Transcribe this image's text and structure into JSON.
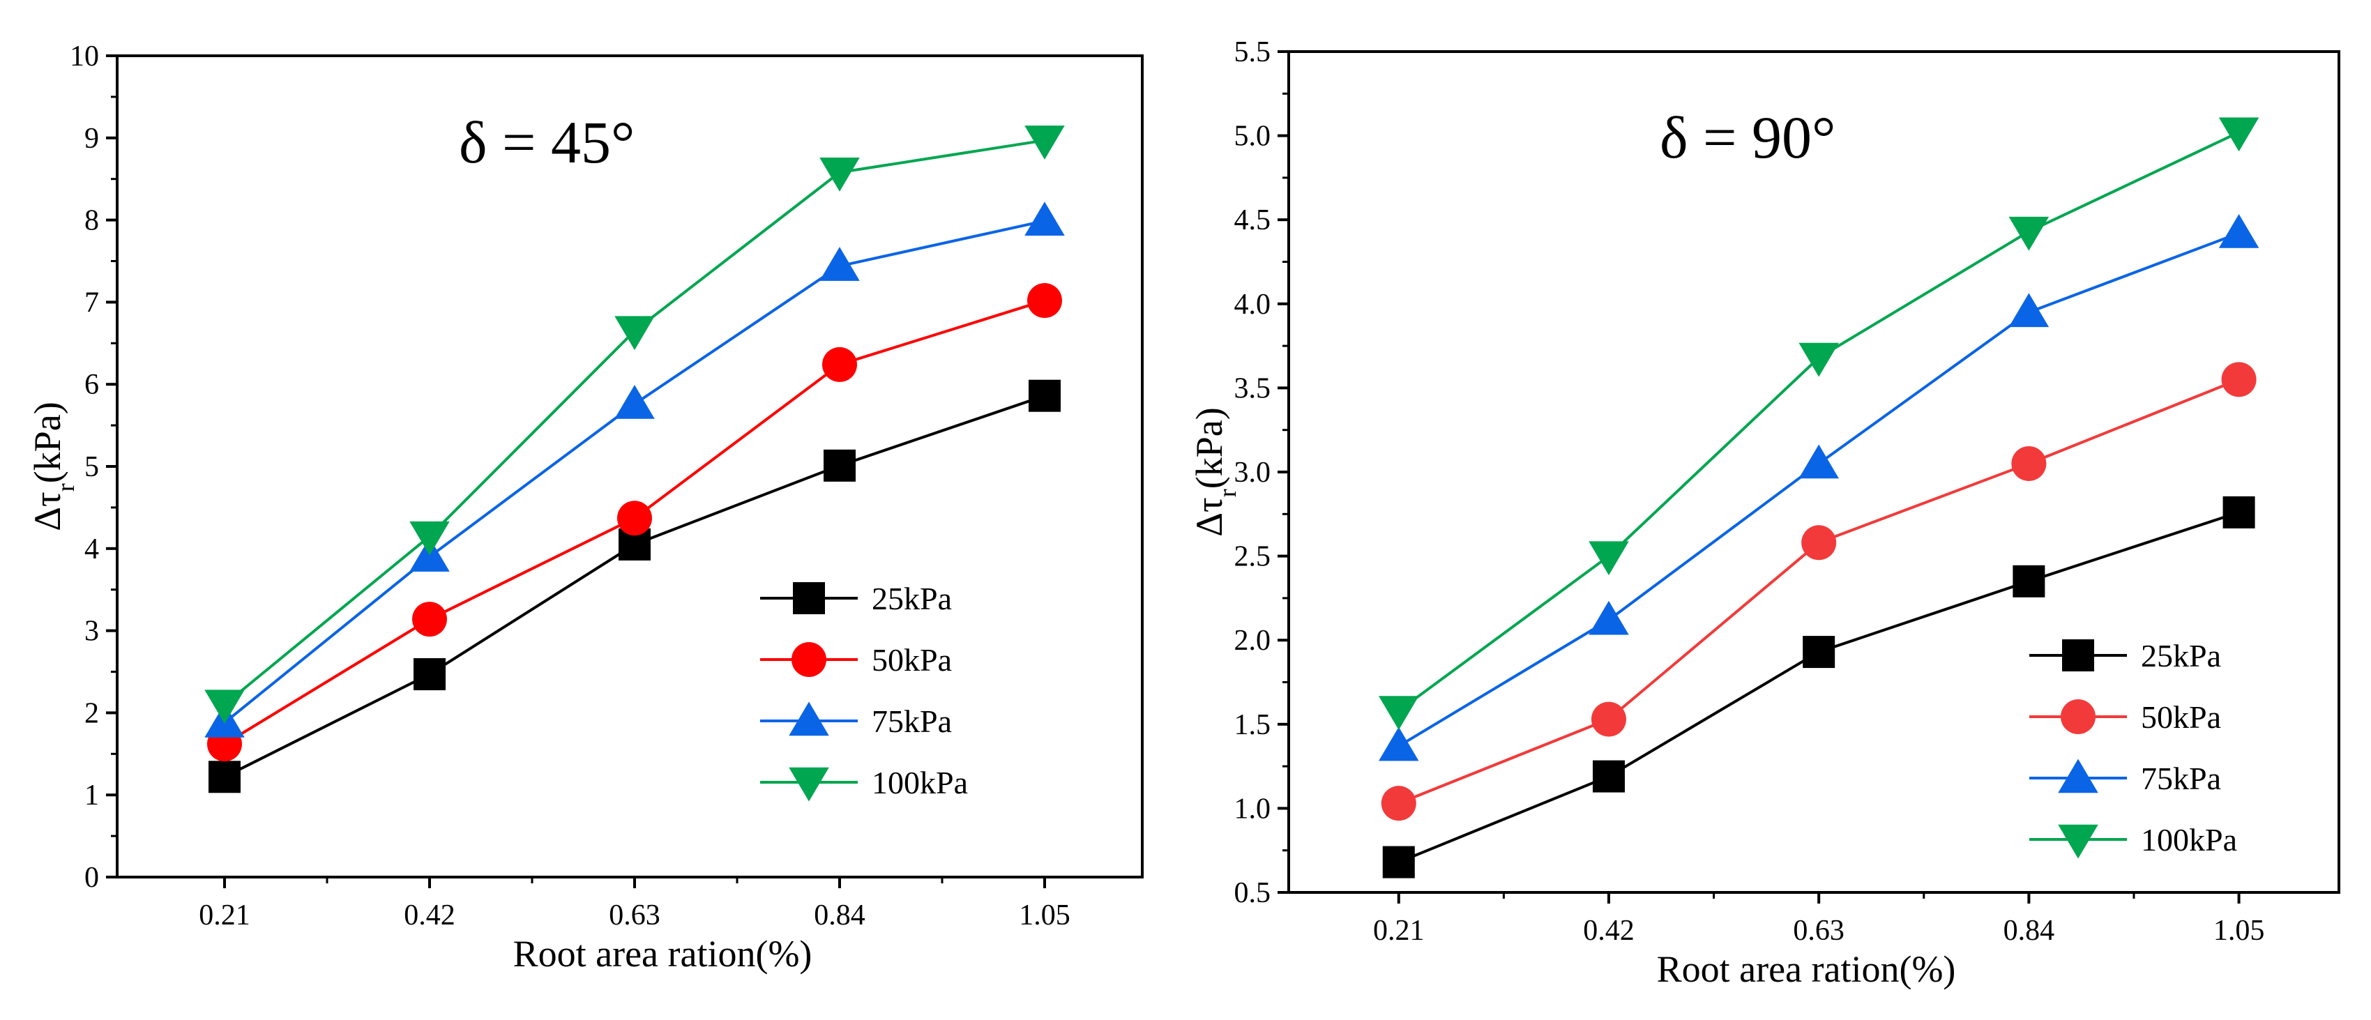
{
  "chart_data": [
    {
      "type": "line",
      "title": "δ = 45°",
      "xlabel": "Root area ration(%)",
      "ylabel_main": "Δτ",
      "ylabel_sub": "r",
      "ylabel_unit": "(kPa)",
      "categories": [
        "0.21",
        "0.42",
        "0.63",
        "0.84",
        "1.05"
      ],
      "x": [
        0.21,
        0.42,
        0.63,
        0.84,
        1.05
      ],
      "xlim": [
        0.1,
        1.15
      ],
      "ylim": [
        0,
        10
      ],
      "yticks": [
        "0",
        "1",
        "2",
        "3",
        "4",
        "5",
        "6",
        "7",
        "8",
        "9",
        "10"
      ],
      "ytick_values": [
        0,
        1,
        2,
        3,
        4,
        5,
        6,
        7,
        8,
        9,
        10
      ],
      "grid": false,
      "legend_position": "bottom-right",
      "series": [
        {
          "name": "25kPa",
          "marker": "square",
          "color": "#000000",
          "values": [
            1.22,
            2.47,
            4.05,
            5.01,
            5.86
          ]
        },
        {
          "name": "50kPa",
          "marker": "circle",
          "color": "#ff0000",
          "values": [
            1.62,
            3.14,
            4.37,
            6.24,
            7.02
          ]
        },
        {
          "name": "75kPa",
          "marker": "triangle-up",
          "color": "#0a64e6",
          "values": [
            1.88,
            3.9,
            5.76,
            7.44,
            7.99
          ]
        },
        {
          "name": "100kPa",
          "marker": "triangle-down",
          "color": "#00a650",
          "values": [
            2.1,
            4.15,
            6.65,
            8.58,
            8.97
          ]
        }
      ]
    },
    {
      "type": "line",
      "title": "δ = 90°",
      "xlabel": "Root area ration(%)",
      "ylabel_main": "Δτ",
      "ylabel_sub": "r",
      "ylabel_unit": "(kPa)",
      "categories": [
        "0.21",
        "0.42",
        "0.63",
        "0.84",
        "1.05"
      ],
      "x": [
        0.21,
        0.42,
        0.63,
        0.84,
        1.05
      ],
      "xlim": [
        0.1,
        1.15
      ],
      "ylim": [
        0.5,
        5.5
      ],
      "yticks": [
        "0.5",
        "1.0",
        "1.5",
        "2.0",
        "2.5",
        "3.0",
        "3.5",
        "4.0",
        "4.5",
        "5.0",
        "5.5"
      ],
      "ytick_values": [
        0.5,
        1.0,
        1.5,
        2.0,
        2.5,
        3.0,
        3.5,
        4.0,
        4.5,
        5.0,
        5.5
      ],
      "grid": false,
      "legend_position": "bottom-right",
      "series": [
        {
          "name": "25kPa",
          "marker": "square",
          "color": "#000000",
          "values": [
            0.68,
            1.19,
            1.93,
            2.35,
            2.76
          ]
        },
        {
          "name": "50kPa",
          "marker": "circle",
          "color": "#f23a3a",
          "values": [
            1.03,
            1.53,
            2.58,
            3.05,
            3.55
          ]
        },
        {
          "name": "75kPa",
          "marker": "triangle-up",
          "color": "#0a64e6",
          "values": [
            1.37,
            2.12,
            3.05,
            3.95,
            4.42
          ]
        },
        {
          "name": "100kPa",
          "marker": "triangle-down",
          "color": "#00a650",
          "values": [
            1.58,
            2.5,
            3.68,
            4.43,
            5.02
          ]
        }
      ]
    }
  ]
}
